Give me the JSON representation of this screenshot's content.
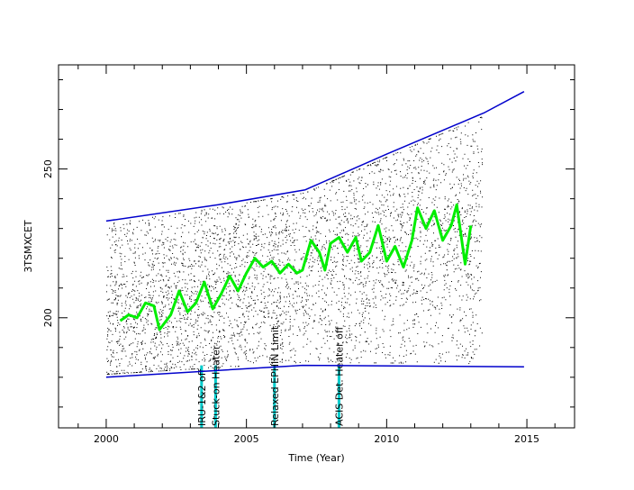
{
  "chart_data": {
    "type": "scatter",
    "title": "",
    "xlabel": "Time (Year)",
    "ylabel": "3TSMXCET",
    "xlim": [
      1998.3,
      2016.7
    ],
    "ylim": [
      163,
      285
    ],
    "x_ticks": [
      2000,
      2005,
      2010,
      2015
    ],
    "y_ticks": [
      200,
      250
    ],
    "grid": false,
    "scatter_color": "#000000",
    "series": [
      {
        "role": "upper-envelope",
        "color": "#0000cc",
        "x": [
          2000.0,
          2004.0,
          2007.1,
          2010.0,
          2013.5,
          2014.9
        ],
        "y": [
          232.5,
          238.0,
          243.0,
          255.0,
          269.0,
          276.0
        ]
      },
      {
        "role": "lower-envelope",
        "color": "#0000cc",
        "x": [
          2000.0,
          2007.0,
          2014.9
        ],
        "y": [
          180.0,
          184.0,
          183.5
        ]
      },
      {
        "role": "smoothed-mean",
        "color": "#00ee00",
        "x": [
          2000.5,
          2000.8,
          2001.1,
          2001.4,
          2001.7,
          2001.9,
          2002.3,
          2002.6,
          2002.9,
          2003.2,
          2003.5,
          2003.8,
          2004.1,
          2004.4,
          2004.7,
          2005.0,
          2005.3,
          2005.6,
          2005.9,
          2006.2,
          2006.5,
          2006.8,
          2007.0,
          2007.3,
          2007.6,
          2007.8,
          2008.0,
          2008.3,
          2008.6,
          2008.9,
          2009.1,
          2009.4,
          2009.7,
          2010.0,
          2010.3,
          2010.6,
          2010.9,
          2011.1,
          2011.4,
          2011.7,
          2012.0,
          2012.3,
          2012.5,
          2012.8,
          2013.0
        ],
        "y": [
          199,
          201,
          200,
          205,
          204,
          196,
          201,
          209,
          202,
          205,
          212,
          203,
          208,
          214,
          209,
          215,
          220,
          217,
          219,
          215,
          218,
          215,
          216,
          226,
          222,
          216,
          225,
          227,
          222,
          227,
          219,
          222,
          231,
          219,
          224,
          217,
          226,
          237,
          230,
          236,
          226,
          231,
          238,
          218,
          231
        ]
      }
    ],
    "events": [
      {
        "x": 2003.4,
        "label": "IRU-1&2 off",
        "color": "#00cccc"
      },
      {
        "x": 2003.9,
        "label": "Stuck-on Heater",
        "color": "#00cccc"
      },
      {
        "x": 2006.0,
        "label": "Relaxed EPHIN Limit",
        "color": "#00cccc"
      },
      {
        "x": 2008.3,
        "label": "ACIS Det. Heater off",
        "color": "#00cccc"
      }
    ]
  }
}
